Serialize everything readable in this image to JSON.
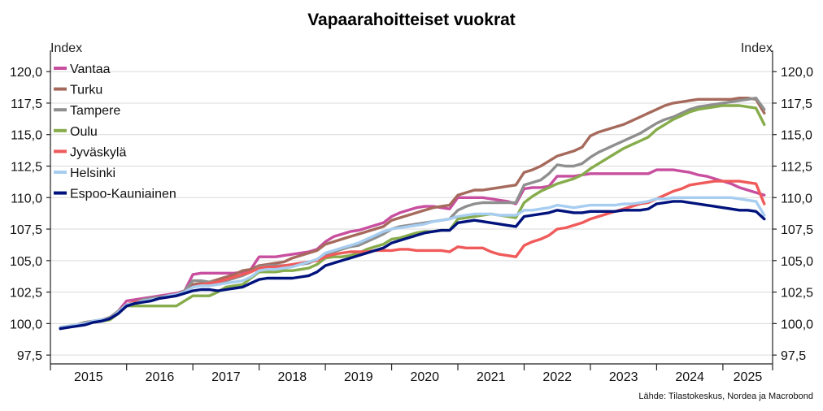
{
  "chart_data": {
    "type": "line",
    "title": "Vapaarahoitteiset vuokrat",
    "ylabel_left": "Index",
    "ylabel_right": "Index",
    "ylim": [
      96.8,
      121.3
    ],
    "yticks": [
      97.5,
      100.0,
      102.5,
      105.0,
      107.5,
      110.0,
      112.5,
      115.0,
      117.5,
      120.0
    ],
    "ytick_labels": [
      "97,5",
      "100,0",
      "102,5",
      "105,0",
      "107,5",
      "110,0",
      "112,5",
      "115,0",
      "117,5",
      "120,0"
    ],
    "xlim": [
      2014.85,
      2025.75
    ],
    "xtick_labels": [
      "2015",
      "2016",
      "2017",
      "2018",
      "2019",
      "2020",
      "2021",
      "2022",
      "2023",
      "2024",
      "2025"
    ],
    "x": [
      2015.0,
      2015.125,
      2015.25,
      2015.375,
      2015.5,
      2015.625,
      2015.75,
      2015.875,
      2016.0,
      2016.125,
      2016.25,
      2016.375,
      2016.5,
      2016.625,
      2016.75,
      2016.875,
      2017.0,
      2017.125,
      2017.25,
      2017.375,
      2017.5,
      2017.625,
      2017.75,
      2017.875,
      2018.0,
      2018.125,
      2018.25,
      2018.375,
      2018.5,
      2018.625,
      2018.75,
      2018.875,
      2019.0,
      2019.125,
      2019.25,
      2019.375,
      2019.5,
      2019.625,
      2019.75,
      2019.875,
      2020.0,
      2020.125,
      2020.25,
      2020.375,
      2020.5,
      2020.625,
      2020.75,
      2020.875,
      2021.0,
      2021.125,
      2021.25,
      2021.375,
      2021.5,
      2021.625,
      2021.75,
      2021.875,
      2022.0,
      2022.125,
      2022.25,
      2022.375,
      2022.5,
      2022.625,
      2022.75,
      2022.875,
      2023.0,
      2023.125,
      2023.25,
      2023.375,
      2023.5,
      2023.625,
      2023.75,
      2023.875,
      2024.0,
      2024.125,
      2024.25,
      2024.375,
      2024.5,
      2024.625,
      2024.75,
      2024.875,
      2025.0,
      2025.125,
      2025.25,
      2025.375,
      2025.5,
      2025.625
    ],
    "series": [
      {
        "name": "Vantaa",
        "color": "#c84f9f",
        "values": [
          99.7,
          99.8,
          99.9,
          100.0,
          100.2,
          100.3,
          100.4,
          101.0,
          101.8,
          101.9,
          102.0,
          102.1,
          102.2,
          102.3,
          102.4,
          102.6,
          103.9,
          104.0,
          104.0,
          104.0,
          104.0,
          104.0,
          104.1,
          104.3,
          105.3,
          105.3,
          105.3,
          105.4,
          105.5,
          105.6,
          105.7,
          105.9,
          106.5,
          106.9,
          107.1,
          107.3,
          107.4,
          107.6,
          107.8,
          108.0,
          108.5,
          108.8,
          109.0,
          109.2,
          109.3,
          109.3,
          109.2,
          109.1,
          110.0,
          110.0,
          110.0,
          110.0,
          109.9,
          109.8,
          109.7,
          109.5,
          110.7,
          110.8,
          110.8,
          110.9,
          111.7,
          111.7,
          111.7,
          111.8,
          111.9,
          111.9,
          111.9,
          111.9,
          111.9,
          111.9,
          111.9,
          111.9,
          112.2,
          112.2,
          112.2,
          112.1,
          112.0,
          111.8,
          111.7,
          111.5,
          111.3,
          111.1,
          110.8,
          110.6,
          110.4,
          110.2
        ]
      },
      {
        "name": "Turku",
        "color": "#a66a5c",
        "values": [
          99.7,
          99.8,
          99.9,
          100.1,
          100.2,
          100.3,
          100.4,
          100.9,
          101.5,
          101.7,
          101.8,
          102.0,
          102.1,
          102.2,
          102.3,
          102.6,
          103.1,
          103.2,
          103.3,
          103.5,
          103.7,
          103.9,
          104.2,
          104.3,
          104.6,
          104.7,
          104.8,
          104.9,
          105.2,
          105.4,
          105.6,
          105.8,
          106.3,
          106.5,
          106.7,
          106.9,
          107.1,
          107.3,
          107.5,
          107.7,
          108.2,
          108.4,
          108.6,
          108.8,
          109.0,
          109.2,
          109.3,
          109.4,
          110.2,
          110.4,
          110.6,
          110.6,
          110.7,
          110.8,
          110.9,
          111.0,
          112.0,
          112.2,
          112.5,
          112.9,
          113.3,
          113.5,
          113.7,
          114.0,
          114.9,
          115.2,
          115.4,
          115.6,
          115.8,
          116.1,
          116.4,
          116.7,
          117.0,
          117.3,
          117.5,
          117.6,
          117.7,
          117.8,
          117.8,
          117.8,
          117.8,
          117.8,
          117.9,
          117.9,
          117.8,
          116.7
        ]
      },
      {
        "name": "Tampere",
        "color": "#8f8f8f",
        "values": [
          99.6,
          99.8,
          99.9,
          100.1,
          100.2,
          100.3,
          100.5,
          101.0,
          101.5,
          101.7,
          101.9,
          102.0,
          102.1,
          102.2,
          102.3,
          102.6,
          103.4,
          103.4,
          103.3,
          103.3,
          103.4,
          103.6,
          103.8,
          104.1,
          104.5,
          104.6,
          104.6,
          104.6,
          104.6,
          104.7,
          104.8,
          105.1,
          105.5,
          105.7,
          105.9,
          106.1,
          106.2,
          106.5,
          106.8,
          107.1,
          107.5,
          107.7,
          107.8,
          107.9,
          108.0,
          108.1,
          108.2,
          108.3,
          109.0,
          109.3,
          109.5,
          109.6,
          109.6,
          109.6,
          109.6,
          109.6,
          111.0,
          111.2,
          111.4,
          111.9,
          112.6,
          112.5,
          112.5,
          112.7,
          113.2,
          113.6,
          113.9,
          114.2,
          114.5,
          114.8,
          115.1,
          115.5,
          115.9,
          116.2,
          116.4,
          116.7,
          117.0,
          117.2,
          117.3,
          117.4,
          117.5,
          117.6,
          117.7,
          117.8,
          117.9,
          117.0
        ]
      },
      {
        "name": "Oulu",
        "color": "#86ac4b",
        "values": [
          99.7,
          99.8,
          99.9,
          100.0,
          100.1,
          100.2,
          100.3,
          100.8,
          101.4,
          101.4,
          101.4,
          101.4,
          101.4,
          101.4,
          101.4,
          101.8,
          102.2,
          102.2,
          102.2,
          102.5,
          102.9,
          103.0,
          103.1,
          103.6,
          104.1,
          104.1,
          104.1,
          104.2,
          104.2,
          104.3,
          104.4,
          104.7,
          105.2,
          105.3,
          105.3,
          105.4,
          105.6,
          105.9,
          106.1,
          106.3,
          106.7,
          106.8,
          107.0,
          107.2,
          107.3,
          107.3,
          107.4,
          107.4,
          108.3,
          108.4,
          108.5,
          108.6,
          108.7,
          108.6,
          108.5,
          108.4,
          109.6,
          110.1,
          110.5,
          110.8,
          111.1,
          111.3,
          111.5,
          111.8,
          112.3,
          112.7,
          113.1,
          113.5,
          113.9,
          114.2,
          114.5,
          114.8,
          115.4,
          115.8,
          116.2,
          116.5,
          116.8,
          117.0,
          117.1,
          117.2,
          117.3,
          117.3,
          117.3,
          117.2,
          117.1,
          115.8
        ]
      },
      {
        "name": "Jyväskylä",
        "color": "#f05a5a",
        "values": [
          99.6,
          99.7,
          99.9,
          100.0,
          100.1,
          100.3,
          100.4,
          100.9,
          101.5,
          101.7,
          101.8,
          101.9,
          102.0,
          102.1,
          102.2,
          102.5,
          102.9,
          103.1,
          103.2,
          103.3,
          103.5,
          103.7,
          103.9,
          104.1,
          104.4,
          104.5,
          104.5,
          104.6,
          104.7,
          104.8,
          104.9,
          105.0,
          105.3,
          105.5,
          105.6,
          105.7,
          105.7,
          105.7,
          105.8,
          105.8,
          105.8,
          105.9,
          105.9,
          105.8,
          105.8,
          105.8,
          105.8,
          105.7,
          106.1,
          106.0,
          106.0,
          106.0,
          105.7,
          105.5,
          105.4,
          105.3,
          106.2,
          106.5,
          106.7,
          107.0,
          107.5,
          107.6,
          107.8,
          108.0,
          108.3,
          108.5,
          108.7,
          108.9,
          109.1,
          109.3,
          109.5,
          109.6,
          109.9,
          110.2,
          110.5,
          110.7,
          111.0,
          111.1,
          111.2,
          111.3,
          111.3,
          111.3,
          111.3,
          111.2,
          111.1,
          109.5
        ]
      },
      {
        "name": "Helsinki",
        "color": "#a7cdf0",
        "values": [
          99.7,
          99.8,
          99.9,
          100.0,
          100.2,
          100.3,
          100.4,
          100.9,
          101.5,
          101.6,
          101.8,
          101.9,
          102.0,
          102.2,
          102.3,
          102.5,
          102.9,
          103.0,
          103.0,
          103.1,
          103.2,
          103.3,
          103.4,
          103.7,
          104.2,
          104.3,
          104.3,
          104.4,
          104.5,
          104.7,
          104.9,
          105.1,
          105.6,
          105.8,
          106.0,
          106.2,
          106.4,
          106.7,
          107.0,
          107.3,
          107.5,
          107.6,
          107.7,
          107.8,
          107.9,
          108.1,
          108.2,
          108.3,
          108.5,
          108.6,
          108.7,
          108.7,
          108.7,
          108.6,
          108.6,
          108.6,
          109.0,
          109.0,
          109.1,
          109.2,
          109.4,
          109.3,
          109.2,
          109.3,
          109.4,
          109.4,
          109.4,
          109.4,
          109.5,
          109.5,
          109.6,
          109.7,
          109.9,
          109.9,
          110.0,
          110.0,
          110.0,
          110.0,
          110.0,
          110.0,
          110.0,
          110.0,
          109.9,
          109.8,
          109.7,
          108.6
        ]
      },
      {
        "name": "Espoo-Kauniainen",
        "color": "#00127c",
        "values": [
          99.6,
          99.7,
          99.8,
          99.9,
          100.1,
          100.2,
          100.4,
          100.8,
          101.4,
          101.6,
          101.7,
          101.8,
          102.0,
          102.1,
          102.2,
          102.4,
          102.6,
          102.7,
          102.7,
          102.6,
          102.7,
          102.8,
          102.9,
          103.2,
          103.5,
          103.6,
          103.6,
          103.6,
          103.6,
          103.7,
          103.8,
          104.1,
          104.6,
          104.8,
          105.0,
          105.2,
          105.4,
          105.6,
          105.8,
          106.0,
          106.4,
          106.6,
          106.8,
          107.0,
          107.2,
          107.3,
          107.4,
          107.4,
          108.0,
          108.1,
          108.2,
          108.1,
          108.0,
          107.9,
          107.8,
          107.7,
          108.5,
          108.6,
          108.7,
          108.8,
          109.0,
          108.9,
          108.8,
          108.8,
          108.9,
          108.9,
          108.9,
          108.9,
          109.0,
          109.0,
          109.0,
          109.1,
          109.5,
          109.6,
          109.7,
          109.7,
          109.6,
          109.5,
          109.4,
          109.3,
          109.2,
          109.1,
          109.0,
          109.0,
          108.9,
          108.3
        ]
      }
    ],
    "legend_position": "top-left",
    "source": "Lähde: Tilastokeskus, Nordea ja Macrobond",
    "grid": true
  }
}
